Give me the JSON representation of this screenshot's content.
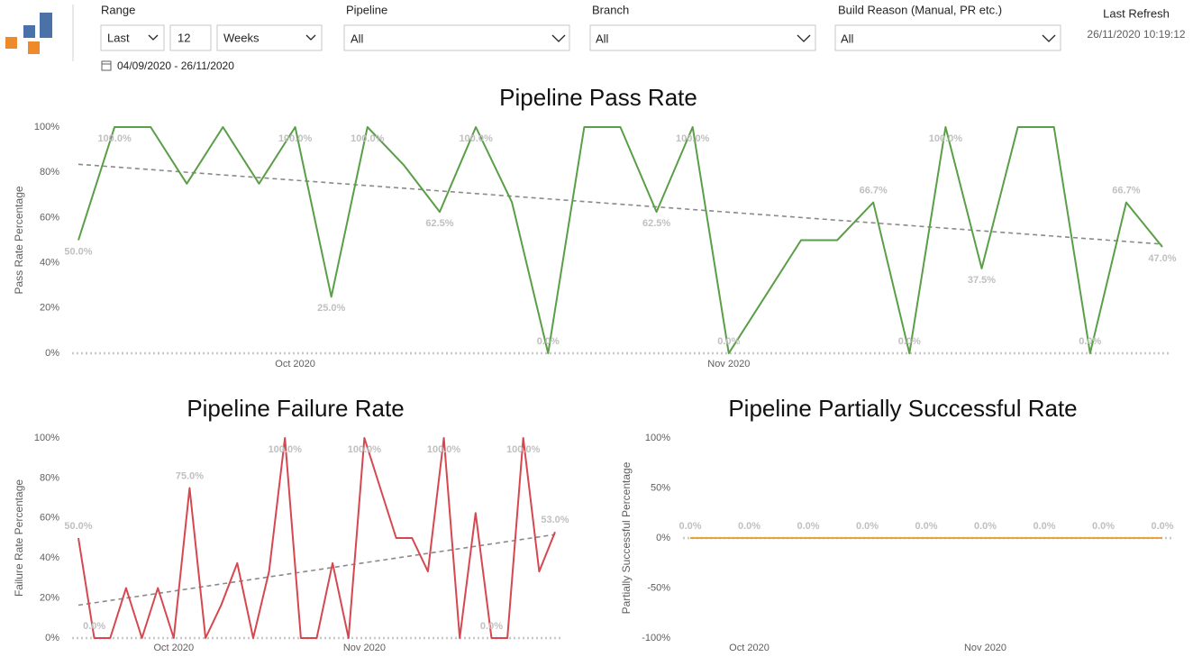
{
  "header": {
    "range": {
      "label": "Range",
      "mode": "Last",
      "count": 12,
      "unit": "Weeks",
      "dates": "04/09/2020 - 26/11/2020"
    },
    "pipeline": {
      "label": "Pipeline",
      "value": "All"
    },
    "branch": {
      "label": "Branch",
      "value": "All"
    },
    "build_reason": {
      "label": "Build Reason (Manual, PR etc.)",
      "value": "All"
    },
    "last_refresh": {
      "label": "Last Refresh",
      "value": "26/11/2020 10:19:12"
    }
  },
  "chart_data": [
    {
      "type": "line",
      "title": "Pipeline Pass Rate",
      "y_label": "Pass Rate Percentage",
      "categories": [
        null,
        null,
        null,
        null,
        null,
        null,
        "Oct 2020",
        null,
        null,
        null,
        null,
        null,
        null,
        null,
        null,
        null,
        null,
        null,
        "Nov 2020",
        null,
        null,
        null,
        null,
        null,
        null,
        null,
        null,
        null,
        null,
        null,
        null
      ],
      "series": [
        {
          "name": "Pass Rate",
          "color": "#5a9e47",
          "values": [
            50,
            100,
            100,
            75,
            100,
            75,
            100,
            25,
            100,
            83.3,
            62.5,
            100,
            66.7,
            0,
            100,
            100,
            62.5,
            100,
            0,
            25,
            50,
            50,
            66.7,
            0,
            100,
            37.5,
            100,
            100,
            0,
            66.7,
            47
          ],
          "value_labels": [
            "50.0%",
            "100.0%",
            null,
            null,
            null,
            null,
            "100.0%",
            "25.0%",
            "100.0%",
            null,
            "62.5%",
            "100.0%",
            null,
            "0.0%",
            null,
            null,
            "62.5%",
            "100.0%",
            "0.0%",
            null,
            null,
            null,
            "66.7%",
            "0.0%",
            "100.0%",
            "37.5%",
            null,
            null,
            "0.0%",
            "66.7%",
            "47.0%"
          ]
        }
      ],
      "trend": true,
      "ylim": [
        0,
        100
      ],
      "yticks": [
        {
          "value": 0,
          "label": "0%"
        },
        {
          "value": 20,
          "label": "20%"
        },
        {
          "value": 40,
          "label": "40%"
        },
        {
          "value": 60,
          "label": "60%"
        },
        {
          "value": 80,
          "label": "80%"
        },
        {
          "value": 100,
          "label": "100%"
        }
      ]
    },
    {
      "type": "line",
      "title": "Pipeline Failure Rate",
      "y_label": "Failure Rate Percentage",
      "categories": [
        null,
        null,
        null,
        null,
        null,
        null,
        "Oct 2020",
        null,
        null,
        null,
        null,
        null,
        null,
        null,
        null,
        null,
        null,
        null,
        "Nov 2020",
        null,
        null,
        null,
        null,
        null,
        null,
        null,
        null,
        null,
        null,
        null,
        null
      ],
      "series": [
        {
          "name": "Failure Rate",
          "color": "#d6474f",
          "values": [
            50,
            0,
            0,
            25,
            0,
            25,
            0,
            75,
            0,
            16.7,
            37.5,
            0,
            33.3,
            100,
            0,
            0,
            37.5,
            0,
            100,
            75,
            50,
            50,
            33.3,
            100,
            0,
            62.5,
            0,
            0,
            100,
            33.3,
            53
          ],
          "value_labels": [
            "50.0%",
            "0.0%",
            null,
            null,
            null,
            null,
            null,
            "75.0%",
            null,
            null,
            null,
            null,
            null,
            "100.0%",
            null,
            null,
            null,
            null,
            "100.0%",
            null,
            null,
            null,
            null,
            "100.0%",
            null,
            null,
            "0.0%",
            null,
            "100.0%",
            null,
            "53.0%"
          ]
        }
      ],
      "trend": true,
      "ylim": [
        0,
        100
      ],
      "yticks": [
        {
          "value": 0,
          "label": "0%"
        },
        {
          "value": 20,
          "label": "20%"
        },
        {
          "value": 40,
          "label": "40%"
        },
        {
          "value": 60,
          "label": "60%"
        },
        {
          "value": 80,
          "label": "80%"
        },
        {
          "value": 100,
          "label": "100%"
        }
      ]
    },
    {
      "type": "line",
      "title": "Pipeline Partially Successful Rate",
      "y_label": "Partially Successful Percentage",
      "categories": [
        null,
        "Oct 2020",
        null,
        null,
        null,
        "Nov 2020",
        null,
        null,
        null
      ],
      "series": [
        {
          "name": "Partially Successful Rate",
          "color": "#e8a33d",
          "values": [
            0,
            0,
            0,
            0,
            0,
            0,
            0,
            0,
            0
          ],
          "value_labels": [
            "0.0%",
            "0.0%",
            "0.0%",
            "0.0%",
            "0.0%",
            "0.0%",
            "0.0%",
            "0.0%",
            "0.0%"
          ]
        }
      ],
      "trend": true,
      "ylim": [
        -100,
        100
      ],
      "yticks": [
        {
          "value": -100,
          "label": "-100%"
        },
        {
          "value": -50,
          "label": "-50%"
        },
        {
          "value": 0,
          "label": "0%"
        },
        {
          "value": 50,
          "label": "50%"
        },
        {
          "value": 100,
          "label": "100%"
        }
      ]
    }
  ]
}
